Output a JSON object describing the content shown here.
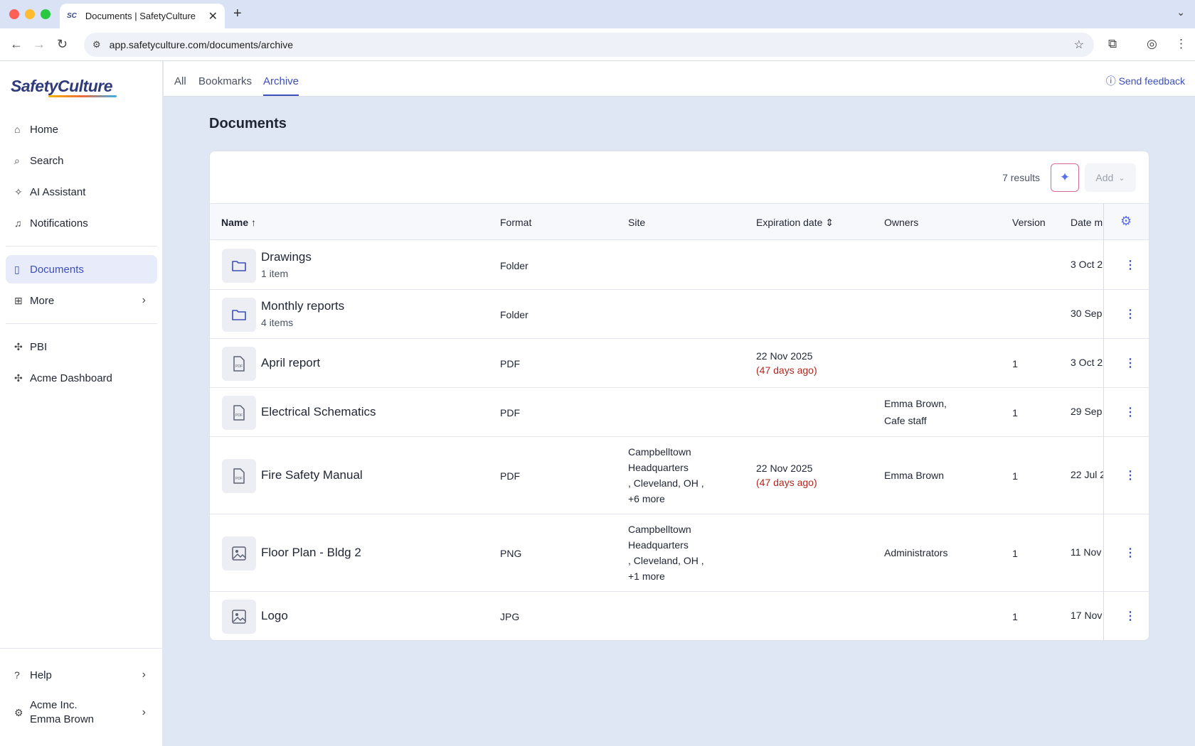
{
  "browser": {
    "tab_title": "Documents | SafetyCulture",
    "favicon_text": "SC",
    "url": "app.safetyculture.com/documents/archive"
  },
  "sidebar": {
    "logo": "SafetyCulture",
    "items": [
      {
        "label": "Home",
        "icon": "home-icon"
      },
      {
        "label": "Search",
        "icon": "search-icon"
      },
      {
        "label": "AI Assistant",
        "icon": "sparkle-icon"
      },
      {
        "label": "Notifications",
        "icon": "bell-icon"
      },
      {
        "label": "Documents",
        "icon": "document-icon",
        "active": true
      },
      {
        "label": "More",
        "icon": "grid-icon"
      },
      {
        "label": "PBI",
        "icon": "puzzle-icon"
      },
      {
        "label": "Acme Dashboard",
        "icon": "puzzle-icon"
      }
    ],
    "help": "Help",
    "account": {
      "org": "Acme Inc.",
      "user": "Emma Brown"
    }
  },
  "topbar": {
    "tabs": [
      "All",
      "Bookmarks",
      "Archive"
    ],
    "active_tab": "Archive",
    "feedback": "Send feedback"
  },
  "page": {
    "title": "Documents",
    "results": "7 results",
    "add_label": "Add"
  },
  "table": {
    "columns": [
      "Name",
      "Format",
      "Site",
      "Expiration date",
      "Owners",
      "Version",
      "Date m"
    ],
    "rows": [
      {
        "name": "Drawings",
        "sub": "1 item",
        "kind": "folder",
        "format": "Folder",
        "site": [],
        "exp_date": "",
        "exp_rel": "",
        "owners": [],
        "version": "",
        "date": "3 Oct 2"
      },
      {
        "name": "Monthly reports",
        "sub": "4 items",
        "kind": "folder",
        "format": "Folder",
        "site": [],
        "exp_date": "",
        "exp_rel": "",
        "owners": [],
        "version": "",
        "date": "30 Sep"
      },
      {
        "name": "April report",
        "sub": "",
        "kind": "pdf",
        "format": "PDF",
        "site": [],
        "exp_date": "22 Nov 2025",
        "exp_rel": "(47 days ago)",
        "owners": [],
        "version": "1",
        "date": "3 Oct 2"
      },
      {
        "name": "Electrical Schematics",
        "sub": "",
        "kind": "pdf",
        "format": "PDF",
        "site": [],
        "exp_date": "",
        "exp_rel": "",
        "owners": [
          "Emma Brown,",
          "Cafe staff"
        ],
        "version": "1",
        "date": "29 Sep"
      },
      {
        "name": "Fire Safety Manual",
        "sub": "",
        "kind": "pdf",
        "format": "PDF",
        "site": [
          "Campbelltown",
          "Headquarters",
          ",  Cleveland, OH ,",
          "+6 more"
        ],
        "exp_date": "22 Nov 2025",
        "exp_rel": "(47 days ago)",
        "owners": [
          "Emma Brown"
        ],
        "version": "1",
        "date": "22 Jul 2"
      },
      {
        "name": "Floor Plan - Bldg 2",
        "sub": "",
        "kind": "image",
        "format": "PNG",
        "site": [
          "Campbelltown",
          "Headquarters",
          ",  Cleveland, OH ,",
          "+1 more"
        ],
        "exp_date": "",
        "exp_rel": "",
        "owners": [
          "Administrators"
        ],
        "version": "1",
        "date": "11 Nov"
      },
      {
        "name": "Logo",
        "sub": "",
        "kind": "image",
        "format": "JPG",
        "site": [],
        "exp_date": "",
        "exp_rel": "",
        "owners": [],
        "version": "1",
        "date": "17 Nov"
      }
    ]
  },
  "colors": {
    "accent": "#3d4fb8",
    "expired": "#b3261e",
    "page_bg": "#dfe6f4"
  }
}
